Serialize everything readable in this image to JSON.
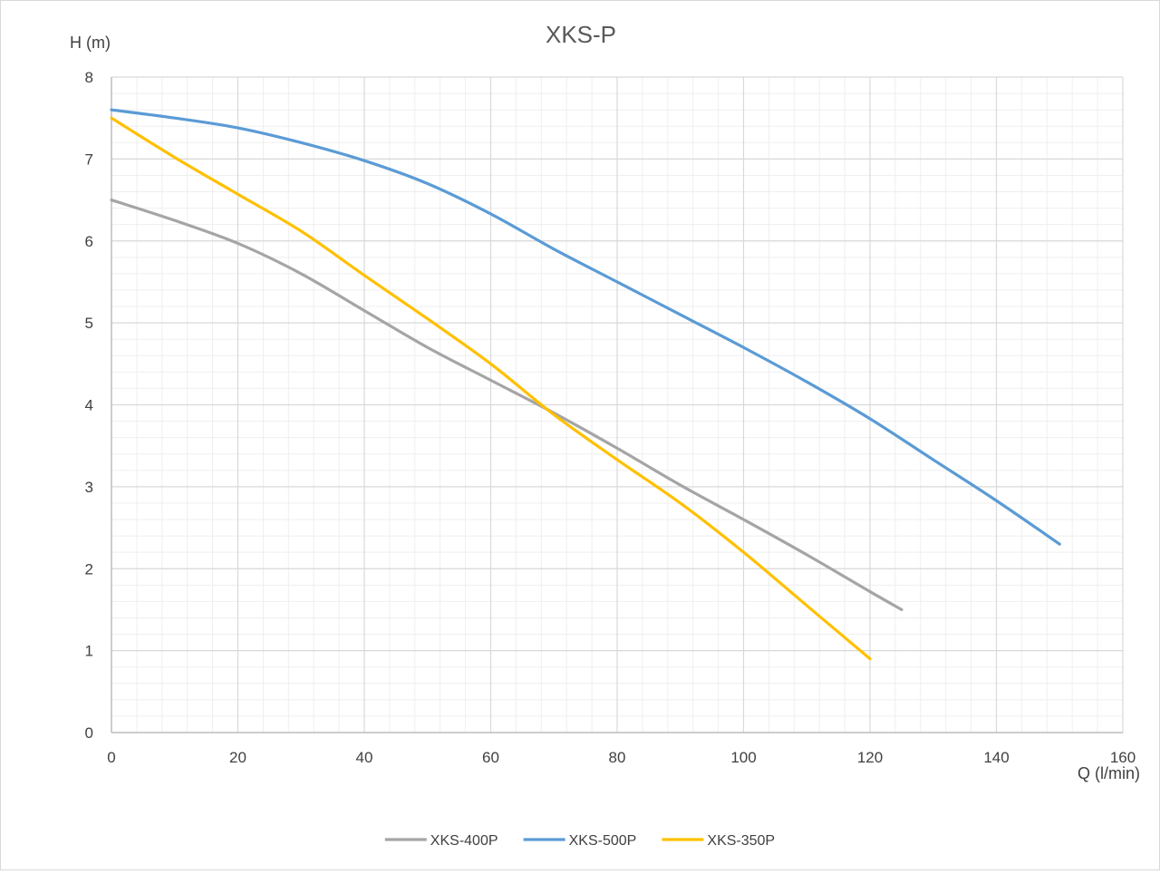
{
  "chart_data": {
    "type": "line",
    "title": "XKS-P",
    "xlabel": "Q (l/min)",
    "ylabel": "H (m)",
    "xlim": [
      0,
      160
    ],
    "ylim": [
      0,
      8
    ],
    "x_ticks": [
      "0",
      "20",
      "40",
      "60",
      "80",
      "100",
      "120",
      "140",
      "160"
    ],
    "y_ticks": [
      "0",
      "1",
      "2",
      "3",
      "4",
      "5",
      "6",
      "7",
      "8"
    ],
    "x_major_step": 20,
    "x_minor_step": 4,
    "y_major_step": 1,
    "y_minor_step": 0.2,
    "grid": true,
    "legend_position": "bottom",
    "series": [
      {
        "name": "XKS-400P",
        "color": "#a5a5a5",
        "points": [
          [
            0,
            6.5
          ],
          [
            10,
            6.25
          ],
          [
            20,
            5.97
          ],
          [
            30,
            5.6
          ],
          [
            40,
            5.15
          ],
          [
            50,
            4.7
          ],
          [
            60,
            4.3
          ],
          [
            70,
            3.9
          ],
          [
            80,
            3.47
          ],
          [
            90,
            3.02
          ],
          [
            100,
            2.6
          ],
          [
            110,
            2.17
          ],
          [
            120,
            1.72
          ],
          [
            125,
            1.5
          ]
        ]
      },
      {
        "name": "XKS-500P",
        "color": "#5b9bd5",
        "points": [
          [
            0,
            7.6
          ],
          [
            10,
            7.5
          ],
          [
            20,
            7.38
          ],
          [
            30,
            7.2
          ],
          [
            40,
            6.98
          ],
          [
            50,
            6.7
          ],
          [
            60,
            6.33
          ],
          [
            70,
            5.9
          ],
          [
            80,
            5.5
          ],
          [
            90,
            5.1
          ],
          [
            100,
            4.7
          ],
          [
            110,
            4.28
          ],
          [
            120,
            3.83
          ],
          [
            130,
            3.33
          ],
          [
            140,
            2.83
          ],
          [
            150,
            2.3
          ]
        ]
      },
      {
        "name": "XKS-350P",
        "color": "#ffc000",
        "points": [
          [
            0,
            7.5
          ],
          [
            10,
            7.02
          ],
          [
            20,
            6.57
          ],
          [
            30,
            6.12
          ],
          [
            40,
            5.58
          ],
          [
            50,
            5.05
          ],
          [
            60,
            4.5
          ],
          [
            70,
            3.88
          ],
          [
            80,
            3.33
          ],
          [
            90,
            2.8
          ],
          [
            100,
            2.2
          ],
          [
            110,
            1.55
          ],
          [
            120,
            0.9
          ]
        ]
      }
    ]
  }
}
